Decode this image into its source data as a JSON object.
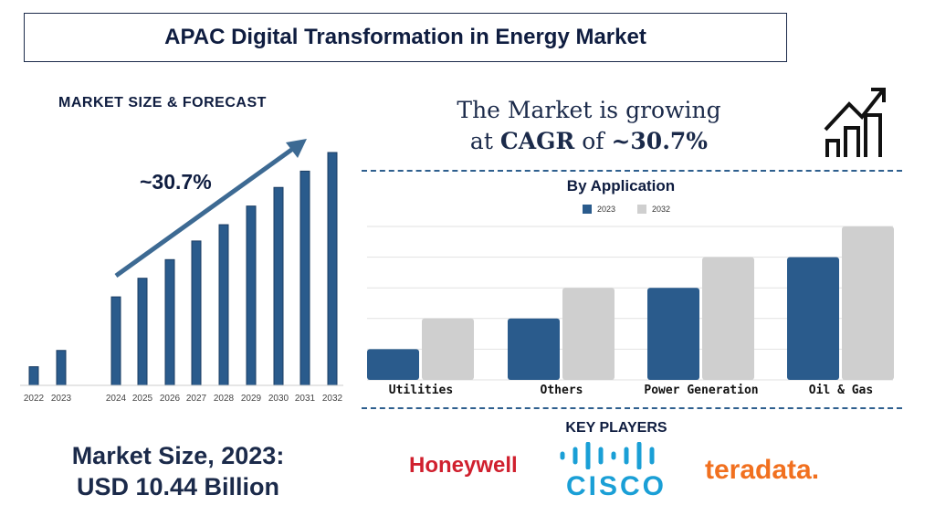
{
  "title": "APAC Digital Transformation in Energy Market",
  "market_size_heading": "MARKET SIZE & FORECAST",
  "cagr": {
    "line1": "The Market is growing",
    "at": "at",
    "cagr_label": "CAGR",
    "of": "of",
    "value": "~30.7%"
  },
  "market_size": {
    "line1": "Market Size, 2023:",
    "line2": "USD 10.44 Billion"
  },
  "key_players": {
    "heading": "KEY PLAYERS",
    "companies": [
      "Honeywell",
      "CISCO",
      "teradata."
    ]
  },
  "colors": {
    "navy": "#0f1d40",
    "bar_blue": "#2a5b8c",
    "bar_gray": "#cfcfcf",
    "honeywell": "#d0202e",
    "cisco": "#1a9fd6",
    "teradata": "#f1701f"
  },
  "icons": [
    "growth-chart-icon",
    "trend-arrow"
  ],
  "chart_data": [
    {
      "type": "bar",
      "title": "",
      "annotation": "~30.7%",
      "categories": [
        "2022",
        "2023",
        "2024",
        "2025",
        "2026",
        "2027",
        "2028",
        "2029",
        "2030",
        "2031",
        "2032"
      ],
      "values": [
        8,
        15,
        38,
        46,
        54,
        62,
        69,
        77,
        85,
        92,
        100
      ],
      "ylim": [
        0,
        100
      ],
      "grid": false,
      "axis_labels_shown": false
    },
    {
      "type": "bar",
      "title": "By Application",
      "categories": [
        "Utilities",
        "Others",
        "Power Generation",
        "Oil & Gas"
      ],
      "series": [
        {
          "name": "2023",
          "values": [
            1,
            2,
            3,
            4
          ]
        },
        {
          "name": "2032",
          "values": [
            2,
            3,
            4,
            5
          ]
        }
      ],
      "ylim": [
        0,
        5
      ],
      "grid": true,
      "legend": "top"
    }
  ]
}
